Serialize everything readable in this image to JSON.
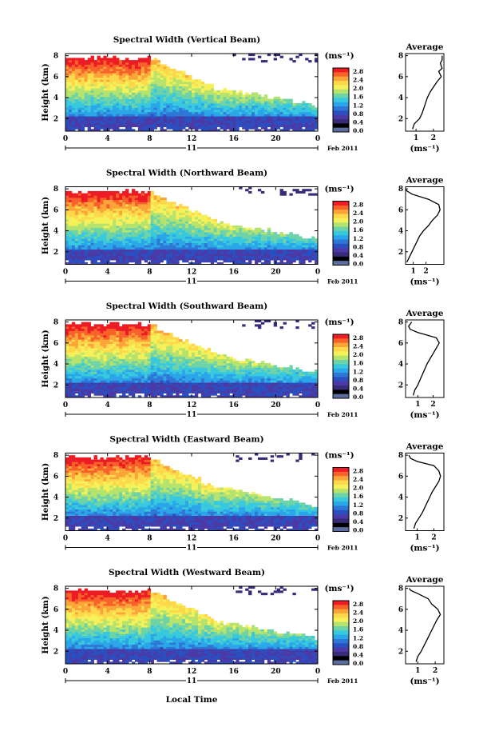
{
  "figure": {
    "xlabel": "Local Time",
    "date_label": "Feb 2011",
    "day_label": "11",
    "avg_title": "Average",
    "unit_label": "(ms⁻¹)",
    "colorbar_ticks": [
      "2.8",
      "2.4",
      "2.0",
      "1.6",
      "1.2",
      "0.8",
      "0.4",
      "0.0"
    ],
    "colorbar_colors": [
      "#ed1c24",
      "#f7622a",
      "#fba43a",
      "#fdd84b",
      "#f4f15a",
      "#b6e36d",
      "#6fd3a8",
      "#39c9df",
      "#2ba6e8",
      "#2f77d6",
      "#2a4fc0",
      "#4b3aa6",
      "#3a2a7a",
      "#000000",
      "#5a6d9e"
    ]
  },
  "chart_data": [
    {
      "type": "heatmap",
      "title": "Spectral Width (Vertical Beam)",
      "ylabel": "Height (km)",
      "x_ticks": [
        "0",
        "4",
        "8",
        "12",
        "16",
        "20",
        "0"
      ],
      "y_ticks": [
        "2",
        "4",
        "6",
        "8"
      ],
      "xlim": [
        0,
        24
      ],
      "ylim": [
        0.8,
        8.2
      ],
      "colorbar_range": [
        0.0,
        3.0
      ],
      "profile": {
        "xlim": [
          0.4,
          2.6
        ],
        "x_ticks": [
          "1",
          "2"
        ],
        "y_ticks": [
          "2",
          "4",
          "6",
          "8"
        ],
        "height": [
          1.0,
          1.5,
          2.0,
          2.5,
          3.0,
          3.5,
          4.0,
          4.5,
          5.0,
          5.5,
          6.0,
          6.5,
          6.8,
          7.0,
          7.3,
          7.6,
          8.0
        ],
        "width": [
          0.8,
          0.9,
          1.2,
          1.35,
          1.45,
          1.55,
          1.65,
          1.8,
          2.0,
          2.2,
          2.45,
          2.3,
          2.5,
          2.45,
          2.4,
          2.5,
          2.5
        ]
      }
    },
    {
      "type": "heatmap",
      "title": "Spectral Width (Northward Beam)",
      "ylabel": "Height (km)",
      "x_ticks": [
        "0",
        "4",
        "8",
        "12",
        "16",
        "20",
        "0"
      ],
      "y_ticks": [
        "2",
        "4",
        "6",
        "8"
      ],
      "xlim": [
        0,
        24
      ],
      "ylim": [
        0.8,
        8.2
      ],
      "colorbar_range": [
        0.0,
        3.0
      ],
      "profile": {
        "xlim": [
          0.4,
          3.4
        ],
        "x_ticks": [
          "1",
          "2"
        ],
        "y_ticks": [
          "2",
          "4",
          "6",
          "8"
        ],
        "height": [
          1.0,
          1.5,
          2.0,
          2.5,
          3.0,
          3.5,
          4.0,
          4.5,
          5.0,
          5.5,
          6.0,
          6.5,
          7.0,
          7.5,
          7.8,
          8.0
        ],
        "width": [
          0.5,
          0.7,
          0.9,
          1.1,
          1.3,
          1.5,
          1.8,
          2.2,
          2.5,
          2.9,
          3.1,
          3.0,
          2.2,
          0.9,
          0.5,
          0.4
        ]
      }
    },
    {
      "type": "heatmap",
      "title": "Spectral Width (Southward Beam)",
      "ylabel": "Height (km)",
      "x_ticks": [
        "0",
        "4",
        "8",
        "12",
        "16",
        "20",
        "0"
      ],
      "y_ticks": [
        "2",
        "4",
        "6",
        "8"
      ],
      "xlim": [
        0,
        24
      ],
      "ylim": [
        0.8,
        8.2
      ],
      "colorbar_range": [
        0.0,
        3.0
      ],
      "profile": {
        "xlim": [
          0.2,
          2.7
        ],
        "x_ticks": [
          "1",
          "2"
        ],
        "y_ticks": [
          "2",
          "4",
          "6",
          "8"
        ],
        "height": [
          1.0,
          1.5,
          2.0,
          2.5,
          3.0,
          3.5,
          4.0,
          4.5,
          5.0,
          5.5,
          6.0,
          6.5,
          7.0,
          7.3,
          7.6,
          8.0
        ],
        "width": [
          0.7,
          0.8,
          1.0,
          1.15,
          1.3,
          1.45,
          1.6,
          1.8,
          2.0,
          2.2,
          2.4,
          2.2,
          1.0,
          0.5,
          0.4,
          0.6
        ]
      }
    },
    {
      "type": "heatmap",
      "title": "Spectral Width (Eastward Beam)",
      "ylabel": "Height (km)",
      "x_ticks": [
        "0",
        "4",
        "8",
        "12",
        "16",
        "20",
        "0"
      ],
      "y_ticks": [
        "2",
        "4",
        "6",
        "8"
      ],
      "xlim": [
        0,
        24
      ],
      "ylim": [
        0.8,
        8.2
      ],
      "colorbar_range": [
        0.0,
        3.0
      ],
      "profile": {
        "xlim": [
          0.3,
          2.6
        ],
        "x_ticks": [
          "1",
          "2"
        ],
        "y_ticks": [
          "2",
          "4",
          "6",
          "8"
        ],
        "height": [
          1.0,
          1.5,
          2.0,
          2.5,
          3.0,
          3.5,
          4.0,
          4.5,
          5.0,
          5.5,
          6.0,
          6.5,
          7.0,
          7.4,
          7.7,
          8.0
        ],
        "width": [
          0.8,
          0.9,
          1.1,
          1.3,
          1.45,
          1.6,
          1.75,
          1.9,
          2.1,
          2.3,
          2.4,
          2.3,
          2.0,
          1.0,
          0.6,
          0.5
        ]
      }
    },
    {
      "type": "heatmap",
      "title": "Spectral Width (Westward Beam)",
      "ylabel": "Height (km)",
      "x_ticks": [
        "0",
        "4",
        "8",
        "12",
        "16",
        "20",
        "0"
      ],
      "y_ticks": [
        "2",
        "4",
        "6",
        "8"
      ],
      "xlim": [
        0,
        24
      ],
      "ylim": [
        0.8,
        8.2
      ],
      "colorbar_range": [
        0.0,
        3.0
      ],
      "profile": {
        "xlim": [
          0.3,
          2.5
        ],
        "x_ticks": [
          "1",
          "2"
        ],
        "y_ticks": [
          "2",
          "4",
          "6",
          "8"
        ],
        "height": [
          1.0,
          1.5,
          2.0,
          2.5,
          3.0,
          3.5,
          4.0,
          4.5,
          5.0,
          5.5,
          6.0,
          6.5,
          7.0,
          7.5,
          7.8,
          8.0
        ],
        "width": [
          0.9,
          1.0,
          1.2,
          1.35,
          1.5,
          1.65,
          1.8,
          1.95,
          2.1,
          2.3,
          2.15,
          1.8,
          1.6,
          1.0,
          0.6,
          0.5
        ]
      }
    }
  ]
}
